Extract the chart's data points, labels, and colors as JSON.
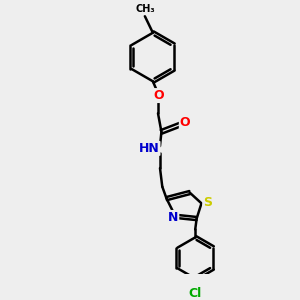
{
  "background_color": "#eeeeee",
  "bond_color": "#000000",
  "atom_colors": {
    "O": "#ff0000",
    "N": "#0000cd",
    "S": "#cccc00",
    "Cl": "#00aa00",
    "C": "#000000",
    "H": "#555555"
  },
  "bond_width": 1.8,
  "figsize": [
    3.0,
    3.0
  ],
  "dpi": 100
}
